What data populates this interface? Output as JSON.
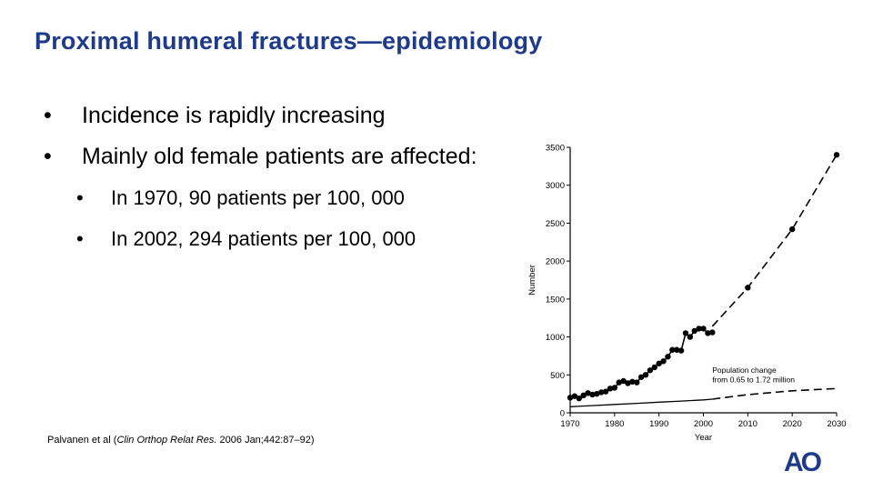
{
  "slide": {
    "title": "Proximal humeral fractures—epidemiology",
    "bullets": [
      {
        "marker": "•",
        "text": "Incidence is rapidly increasing"
      },
      {
        "marker": "•",
        "text": "Mainly old female patients are affected:"
      }
    ],
    "sub_bullets": [
      {
        "marker": "•",
        "text": "In 1970, 90 patients per 100, 000"
      },
      {
        "marker": "•",
        "text": "In 2002, 294 patients per 100, 000"
      }
    ],
    "citation": {
      "prefix": "Palvanen et al (",
      "journal": "Clin Orthop Relat Res.",
      "suffix": " 2006 Jan;442:87–92)"
    },
    "logo_text": "AO",
    "colors": {
      "title": "#1e3a8a",
      "logo": "#1e3a8a"
    }
  },
  "chart_data": {
    "type": "line",
    "xlabel": "Year",
    "ylabel": "Number",
    "xlim": [
      1970,
      2030
    ],
    "ylim": [
      0,
      3500
    ],
    "x_ticks": [
      1970,
      1980,
      1990,
      2000,
      2010,
      2020,
      2030
    ],
    "y_ticks": [
      0,
      500,
      1000,
      1500,
      2000,
      2500,
      3000,
      3500
    ],
    "grid": false,
    "annotation": {
      "lines": [
        "Population change",
        "from 0.65 to 1.72 million"
      ],
      "x": 2002,
      "y": 530
    },
    "series": [
      {
        "style": "points",
        "x": [
          1970,
          1971,
          1972,
          1973,
          1974,
          1975,
          1976,
          1977,
          1978,
          1979,
          1980,
          1981,
          1982,
          1983,
          1984,
          1985,
          1986,
          1987,
          1988,
          1989,
          1990,
          1991,
          1992,
          1993,
          1994,
          1995,
          1996,
          1997,
          1998,
          1999,
          2000,
          2001,
          2002
        ],
        "y": [
          200,
          220,
          190,
          230,
          260,
          240,
          250,
          270,
          280,
          320,
          330,
          400,
          420,
          390,
          410,
          400,
          470,
          500,
          560,
          600,
          650,
          680,
          740,
          830,
          830,
          820,
          1050,
          1000,
          1080,
          1110,
          1110,
          1050,
          1060
        ]
      },
      {
        "style": "dashed",
        "x": [
          2002,
          2010,
          2020,
          2030
        ],
        "y": [
          1140,
          1650,
          2420,
          3400
        ]
      },
      {
        "style": "solid",
        "x": [
          1970,
          1975,
          1980,
          1985,
          1990,
          1995,
          2000,
          2002
        ],
        "y": [
          80,
          95,
          110,
          125,
          140,
          155,
          170,
          180
        ]
      },
      {
        "style": "dashed",
        "x": [
          2002,
          2010,
          2020,
          2030
        ],
        "y": [
          180,
          240,
          290,
          320
        ]
      }
    ]
  }
}
